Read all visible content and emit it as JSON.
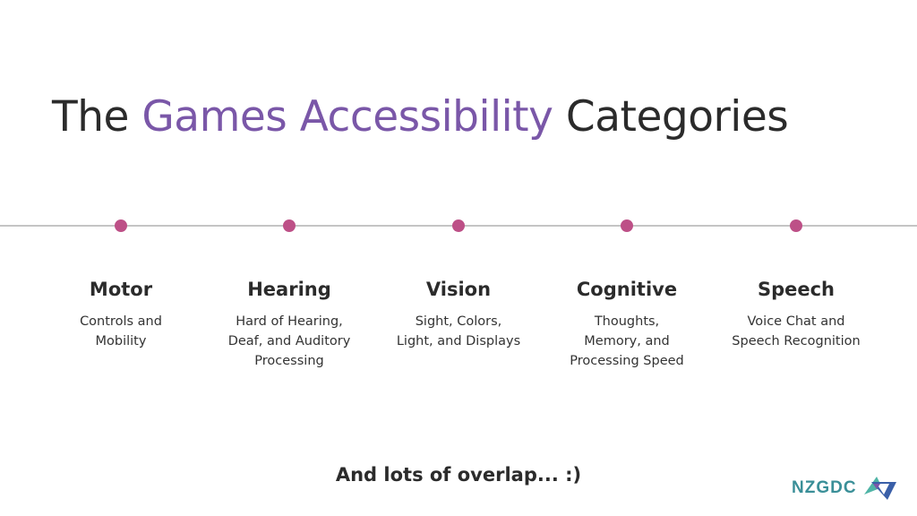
{
  "title": {
    "prefix": "The",
    "accent": "Games Accessibility",
    "suffix": "Categories"
  },
  "accent_color": "#7a57a8",
  "dot_color": "#bd5087",
  "categories": [
    {
      "heading": "Motor",
      "lines": [
        "Controls and",
        "Mobility"
      ]
    },
    {
      "heading": "Hearing",
      "lines": [
        "Hard of Hearing,",
        "Deaf, and Auditory",
        "Processing"
      ]
    },
    {
      "heading": "Vision",
      "lines": [
        "Sight, Colors,",
        "Light, and Displays"
      ]
    },
    {
      "heading": "Cognitive",
      "lines": [
        "Thoughts,",
        "Memory, and",
        "Processing Speed"
      ]
    },
    {
      "heading": "Speech",
      "lines": [
        "Voice Chat and",
        "Speech Recognition"
      ]
    }
  ],
  "footer": "And lots of overlap... :)",
  "logo": {
    "text": "NZGDC",
    "icon": "triangle-logo-icon"
  }
}
